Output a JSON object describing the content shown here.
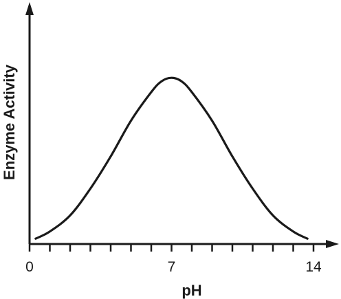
{
  "chart_data": {
    "type": "line",
    "title": "",
    "xlabel": "pH",
    "ylabel": "Enzyme Activity",
    "xlim": [
      0,
      14.5
    ],
    "ylim": [
      0,
      1.05
    ],
    "x_tick_labels": [
      {
        "value": 0,
        "label": "0"
      },
      {
        "value": 7,
        "label": "7"
      },
      {
        "value": 14,
        "label": "14"
      }
    ],
    "minor_ticks": [
      1,
      2,
      3,
      4,
      5,
      6,
      8,
      9,
      10,
      11,
      12,
      13
    ],
    "y_ticks": [],
    "grid": false,
    "legend": "none",
    "series": [
      {
        "x": [
          0.3,
          1,
          2,
          3,
          4,
          5,
          6,
          6.5,
          7,
          7.5,
          8,
          9,
          10,
          11,
          12,
          13,
          13.7
        ],
        "y": [
          0.03,
          0.07,
          0.16,
          0.31,
          0.49,
          0.69,
          0.85,
          0.91,
          0.93,
          0.91,
          0.85,
          0.69,
          0.49,
          0.31,
          0.16,
          0.07,
          0.03
        ]
      }
    ]
  },
  "colors": {
    "ink": "#1a1a1a",
    "background": "#ffffff"
  }
}
